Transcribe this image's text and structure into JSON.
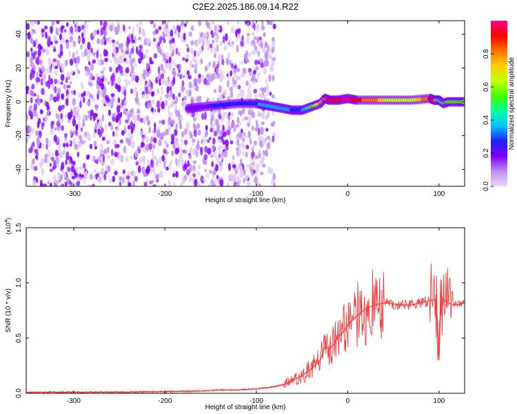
{
  "title": "C2E2.2025.186.09.14.R22",
  "chart_data": [
    {
      "type": "heatmap",
      "xlabel": "Height of straight line (km)",
      "ylabel": "Frequency (Hz)",
      "xlim": [
        -352,
        128
      ],
      "ylim": [
        -50,
        48
      ],
      "x_ticks": [
        -300,
        -200,
        -100,
        0,
        100
      ],
      "x_tick_labels": [
        "-300",
        "-200",
        "-100",
        "0",
        "100"
      ],
      "y_ticks": [
        -40,
        -20,
        0,
        20,
        40
      ],
      "y_tick_labels": [
        "-40",
        "-20",
        "0",
        "20",
        "40"
      ],
      "colorbar": {
        "label": "Normalized spectral amplitude",
        "range": [
          0,
          1
        ],
        "ticks": [
          0.0,
          0.2,
          0.4,
          0.6,
          0.8
        ],
        "tick_labels": [
          "0.0",
          "0.2",
          "0.4",
          "0.6",
          "0.8"
        ],
        "colormap": [
          "#e8d8f8",
          "#c090f0",
          "#8000ff",
          "#2020ff",
          "#00c0ff",
          "#00ffa0",
          "#40ff00",
          "#c0ff00",
          "#ffd000",
          "#ff7000",
          "#ff0000",
          "#ff0080"
        ]
      },
      "trace": {
        "x": [
          -175,
          -160,
          -140,
          -120,
          -100,
          -90,
          -80,
          -70,
          -60,
          -50,
          -40,
          -30,
          -25,
          -20,
          -10,
          0,
          10,
          30,
          50,
          70,
          90,
          95,
          100,
          105,
          110,
          120,
          128
        ],
        "freq": [
          -4,
          -3,
          -2,
          -1,
          -1,
          -2,
          -3,
          -4,
          -5,
          -5,
          -3,
          -1,
          2,
          1,
          1,
          2,
          1,
          1,
          1,
          1,
          2,
          1,
          1,
          -1,
          0,
          0,
          0
        ],
        "amplitude": [
          0.15,
          0.2,
          0.25,
          0.3,
          0.3,
          0.35,
          0.4,
          0.4,
          0.3,
          0.3,
          0.5,
          0.7,
          0.8,
          0.9,
          0.9,
          1.0,
          0.9,
          0.8,
          0.6,
          0.6,
          0.9,
          0.9,
          0.4,
          0.5,
          0.5,
          0.5,
          0.5
        ]
      },
      "noise_region": {
        "x_from": -352,
        "x_to": -80
      }
    },
    {
      "type": "line",
      "xlabel": "Height of straight line (km)",
      "ylabel": "SNR (10 * v/v)",
      "y_multiplier_label": "(x10",
      "y_multiplier_exp": "4",
      "y_multiplier_close": ")",
      "xlim": [
        -352,
        128
      ],
      "ylim": [
        0,
        1.5
      ],
      "x_ticks": [
        -300,
        -200,
        -100,
        0,
        100
      ],
      "x_tick_labels": [
        "-300",
        "-200",
        "-100",
        "0",
        "100"
      ],
      "y_ticks": [
        0,
        0.5,
        1.0,
        1.5
      ],
      "y_tick_labels": [
        "0.0",
        "0.5",
        "1.0",
        "1.5"
      ],
      "color": "#f03a3a",
      "series": [
        {
          "x": [
            -352,
            -300,
            -250,
            -200,
            -160,
            -140,
            -120,
            -100,
            -90,
            -80,
            -70,
            -60,
            -50,
            -40,
            -30,
            -25,
            -20,
            -15,
            -10,
            -5,
            0,
            10,
            20,
            30,
            40,
            50,
            60,
            70,
            80,
            90,
            95,
            98,
            100,
            102,
            105,
            110,
            115,
            120,
            128
          ],
          "y": [
            0.01,
            0.01,
            0.01,
            0.015,
            0.02,
            0.03,
            0.03,
            0.04,
            0.05,
            0.06,
            0.08,
            0.12,
            0.16,
            0.22,
            0.3,
            0.42,
            0.4,
            0.45,
            0.52,
            0.55,
            0.62,
            0.7,
            0.77,
            0.8,
            0.82,
            0.81,
            0.8,
            0.8,
            0.82,
            0.84,
            0.85,
            0.7,
            0.3,
            0.8,
            0.85,
            0.82,
            0.8,
            0.8,
            0.82
          ]
        }
      ]
    }
  ]
}
